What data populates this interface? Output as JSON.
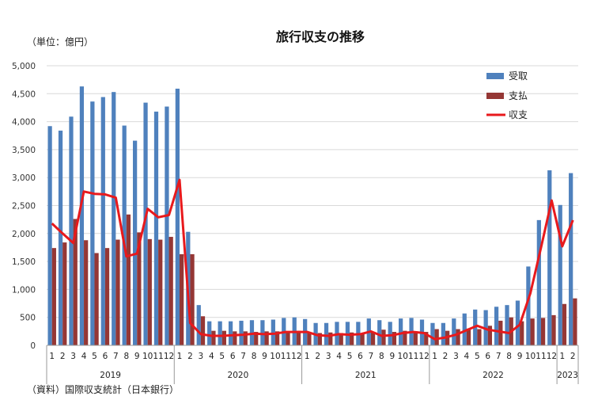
{
  "chart_data": {
    "type": "bar",
    "title": "旅行収支の推移",
    "unit_label": "（単位：億円）",
    "source": "（資料）国際収支統計（日本銀行）",
    "ylim": [
      0,
      5000
    ],
    "yticks": [
      "0",
      "500",
      "1,000",
      "1,500",
      "2,000",
      "2,500",
      "3,000",
      "3,500",
      "4,000",
      "4,500",
      "5,000"
    ],
    "legend_position": "top-right",
    "years": [
      {
        "label": "2019",
        "months": 12
      },
      {
        "label": "2020",
        "months": 12
      },
      {
        "label": "2021",
        "months": 12
      },
      {
        "label": "2022",
        "months": 12
      },
      {
        "label": "2023",
        "months": 2
      }
    ],
    "categories": [
      "1",
      "2",
      "3",
      "4",
      "5",
      "6",
      "7",
      "8",
      "9",
      "10",
      "11",
      "12",
      "1",
      "2",
      "3",
      "4",
      "5",
      "6",
      "7",
      "8",
      "9",
      "10",
      "11",
      "12",
      "1",
      "2",
      "3",
      "4",
      "5",
      "6",
      "7",
      "8",
      "9",
      "10",
      "11",
      "12",
      "1",
      "2",
      "3",
      "4",
      "5",
      "6",
      "7",
      "8",
      "9",
      "10",
      "11",
      "12",
      "1",
      "2"
    ],
    "series": [
      {
        "name": "受取",
        "type": "bar",
        "color": "#4f81bd",
        "values": [
          3920,
          3840,
          4090,
          4630,
          4360,
          4440,
          4530,
          3930,
          3660,
          4340,
          4180,
          4270,
          4590,
          2030,
          720,
          430,
          430,
          430,
          440,
          450,
          450,
          460,
          490,
          500,
          470,
          400,
          400,
          420,
          420,
          420,
          480,
          450,
          420,
          480,
          490,
          460,
          400,
          400,
          480,
          570,
          640,
          630,
          690,
          720,
          800,
          1410,
          2240,
          3130,
          2510,
          3080
        ]
      },
      {
        "name": "支払",
        "type": "bar",
        "color": "#953735",
        "values": [
          1740,
          1840,
          2260,
          1880,
          1650,
          1740,
          1890,
          2340,
          2020,
          1900,
          1890,
          1940,
          1630,
          1630,
          520,
          260,
          260,
          250,
          250,
          240,
          250,
          250,
          250,
          260,
          230,
          220,
          230,
          220,
          230,
          220,
          230,
          280,
          240,
          260,
          250,
          240,
          290,
          260,
          290,
          300,
          290,
          350,
          440,
          500,
          430,
          480,
          490,
          540,
          740,
          840
        ]
      },
      {
        "name": "収支",
        "type": "line",
        "color": "#e8191c",
        "values": [
          2180,
          2000,
          1830,
          2750,
          2710,
          2700,
          2640,
          1590,
          1640,
          2440,
          2290,
          2330,
          2960,
          400,
          200,
          170,
          170,
          180,
          190,
          210,
          200,
          210,
          240,
          240,
          240,
          180,
          170,
          200,
          190,
          200,
          250,
          170,
          180,
          220,
          240,
          220,
          110,
          140,
          190,
          270,
          350,
          280,
          250,
          220,
          370,
          930,
          1750,
          2590,
          1770,
          2240
        ]
      }
    ]
  }
}
